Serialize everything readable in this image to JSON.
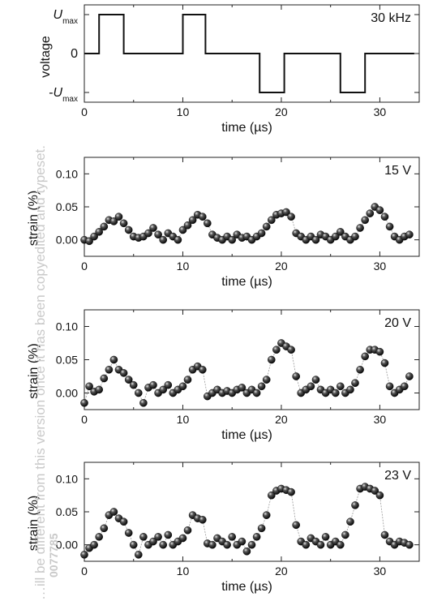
{
  "watermark": {
    "text": "…ill be different from this version once it has been copyedited and typeset.",
    "doi_fragment": "0077785"
  },
  "chart_data": [
    {
      "type": "line",
      "title": "",
      "corner_label": "30 kHz",
      "xlabel": "time (µs)",
      "ylabel": "voltage",
      "xlim": [
        0,
        34
      ],
      "ylim": [
        -1.25,
        1.25
      ],
      "xticks": [
        0,
        10,
        20,
        30
      ],
      "yticks": [
        1,
        0,
        -1
      ],
      "ytick_labels": [
        {
          "main": "U",
          "sub": "max",
          "prefix": ""
        },
        {
          "main": "0",
          "sub": "",
          "prefix": ""
        },
        {
          "main": "U",
          "sub": "max",
          "prefix": "-"
        }
      ],
      "series": [
        {
          "x": [
            0,
            1.5,
            1.5,
            4,
            4,
            10,
            10,
            12.3,
            12.3,
            17.8,
            17.8,
            20.3,
            20.3,
            26,
            26,
            28.5,
            28.5,
            33.5
          ],
          "y": [
            0,
            0,
            1,
            1,
            0,
            0,
            1,
            1,
            0,
            0,
            -1,
            -1,
            0,
            0,
            -1,
            -1,
            0,
            0
          ]
        }
      ]
    },
    {
      "type": "scatter",
      "corner_label": "15 V",
      "xlabel": "time (µs)",
      "ylabel": "strain (%)",
      "xlim": [
        0,
        34
      ],
      "ylim": [
        -0.025,
        0.125
      ],
      "xticks": [
        0,
        10,
        20,
        30
      ],
      "yticks": [
        0.0,
        0.05,
        0.1
      ],
      "ytick_labels": [
        "0.00",
        "0.05",
        "0.10"
      ],
      "series": [
        {
          "x": [
            0,
            0.5,
            1,
            1.5,
            2,
            2.5,
            3,
            3.5,
            4,
            4.5,
            5,
            5.5,
            6,
            6.5,
            7,
            7.5,
            8,
            8.5,
            9,
            9.5,
            10,
            10.5,
            11,
            11.5,
            12,
            12.5,
            13,
            13.5,
            14,
            14.5,
            15,
            15.5,
            16,
            16.5,
            17,
            17.5,
            18,
            18.5,
            19,
            19.5,
            20,
            20.5,
            21,
            21.5,
            22,
            22.5,
            23,
            23.5,
            24,
            24.5,
            25,
            25.5,
            26,
            26.5,
            27,
            27.5,
            28,
            28.5,
            29,
            29.5,
            30,
            30.5,
            31,
            31.5,
            32,
            32.5,
            33
          ],
          "y": [
            0.0,
            -0.002,
            0.005,
            0.012,
            0.02,
            0.03,
            0.028,
            0.035,
            0.025,
            0.015,
            0.005,
            0.003,
            0.005,
            0.01,
            0.018,
            0.008,
            0.0,
            0.01,
            0.005,
            0.0,
            0.015,
            0.022,
            0.03,
            0.038,
            0.035,
            0.025,
            0.008,
            0.003,
            0.0,
            0.005,
            0.0,
            0.008,
            0.003,
            0.005,
            0.0,
            0.005,
            0.01,
            0.02,
            0.03,
            0.038,
            0.04,
            0.042,
            0.035,
            0.01,
            0.005,
            0.0,
            0.005,
            0.0,
            0.008,
            0.005,
            0.0,
            0.005,
            0.012,
            0.005,
            0.0,
            0.005,
            0.018,
            0.03,
            0.04,
            0.05,
            0.045,
            0.035,
            0.02,
            0.005,
            0.0,
            0.005,
            0.008
          ]
        }
      ]
    },
    {
      "type": "scatter",
      "corner_label": "20 V",
      "xlabel": "time (µs)",
      "ylabel": "strain (%)",
      "xlim": [
        0,
        34
      ],
      "ylim": [
        -0.025,
        0.125
      ],
      "xticks": [
        0,
        10,
        20,
        30
      ],
      "yticks": [
        0.0,
        0.05,
        0.1
      ],
      "ytick_labels": [
        "0.00",
        "0.05",
        "0.10"
      ],
      "series": [
        {
          "x": [
            0,
            0.5,
            1,
            1.5,
            2,
            2.5,
            3,
            3.5,
            4,
            4.5,
            5,
            5.5,
            6,
            6.5,
            7,
            7.5,
            8,
            8.5,
            9,
            9.5,
            10,
            10.5,
            11,
            11.5,
            12,
            12.5,
            13,
            13.5,
            14,
            14.5,
            15,
            15.5,
            16,
            16.5,
            17,
            17.5,
            18,
            18.5,
            19,
            19.5,
            20,
            20.5,
            21,
            21.5,
            22,
            22.5,
            23,
            23.5,
            24,
            24.5,
            25,
            25.5,
            26,
            26.5,
            27,
            27.5,
            28,
            28.5,
            29,
            29.5,
            30,
            30.5,
            31,
            31.5,
            32,
            32.5,
            33
          ],
          "y": [
            -0.015,
            0.01,
            0.002,
            0.005,
            0.022,
            0.035,
            0.05,
            0.035,
            0.03,
            0.02,
            0.012,
            0.0,
            -0.015,
            0.008,
            0.012,
            0.0,
            0.005,
            0.012,
            0.0,
            0.005,
            0.01,
            0.02,
            0.035,
            0.04,
            0.035,
            -0.005,
            0.0,
            0.005,
            0.0,
            0.003,
            0.0,
            0.005,
            0.008,
            0.0,
            0.005,
            0.0,
            0.01,
            0.02,
            0.05,
            0.065,
            0.075,
            0.07,
            0.065,
            0.025,
            0.0,
            0.005,
            0.01,
            0.02,
            0.005,
            0.0,
            0.005,
            0.0,
            0.01,
            0.0,
            0.005,
            0.015,
            0.035,
            0.055,
            0.065,
            0.065,
            0.062,
            0.045,
            0.01,
            0.0,
            0.005,
            0.01,
            0.025
          ]
        }
      ]
    },
    {
      "type": "scatter",
      "corner_label": "23 V",
      "xlabel": "time (µs)",
      "ylabel": "strain (%)",
      "xlim": [
        0,
        34
      ],
      "ylim": [
        -0.025,
        0.125
      ],
      "xticks": [
        0,
        10,
        20,
        30
      ],
      "yticks": [
        0.0,
        0.05,
        0.1
      ],
      "ytick_labels": [
        "0.00",
        "0.05",
        "0.10"
      ],
      "series": [
        {
          "x": [
            0,
            0.5,
            1,
            1.5,
            2,
            2.5,
            3,
            3.5,
            4,
            4.5,
            5,
            5.5,
            6,
            6.5,
            7,
            7.5,
            8,
            8.5,
            9,
            9.5,
            10,
            10.5,
            11,
            11.5,
            12,
            12.5,
            13,
            13.5,
            14,
            14.5,
            15,
            15.5,
            16,
            16.5,
            17,
            17.5,
            18,
            18.5,
            19,
            19.5,
            20,
            20.5,
            21,
            21.5,
            22,
            22.5,
            23,
            23.5,
            24,
            24.5,
            25,
            25.5,
            26,
            26.5,
            27,
            27.5,
            28,
            28.5,
            29,
            29.5,
            30,
            30.5,
            31,
            31.5,
            32,
            32.5,
            33
          ],
          "y": [
            -0.015,
            -0.005,
            0.0,
            0.012,
            0.025,
            0.045,
            0.05,
            0.04,
            0.035,
            0.018,
            0.0,
            -0.015,
            0.012,
            0.0,
            0.005,
            0.012,
            0.0,
            0.015,
            0.0,
            0.005,
            0.01,
            0.022,
            0.045,
            0.04,
            0.038,
            0.002,
            0.0,
            0.01,
            0.005,
            0.0,
            0.012,
            0.0,
            0.005,
            -0.01,
            0.0,
            0.012,
            0.025,
            0.045,
            0.075,
            0.082,
            0.085,
            0.083,
            0.08,
            0.03,
            0.005,
            0.0,
            0.01,
            0.005,
            0.0,
            0.012,
            0.0,
            0.005,
            0.0,
            0.015,
            0.035,
            0.06,
            0.085,
            0.088,
            0.085,
            0.082,
            0.075,
            0.015,
            0.005,
            0.0,
            0.005,
            0.003,
            0.0
          ]
        }
      ]
    }
  ]
}
